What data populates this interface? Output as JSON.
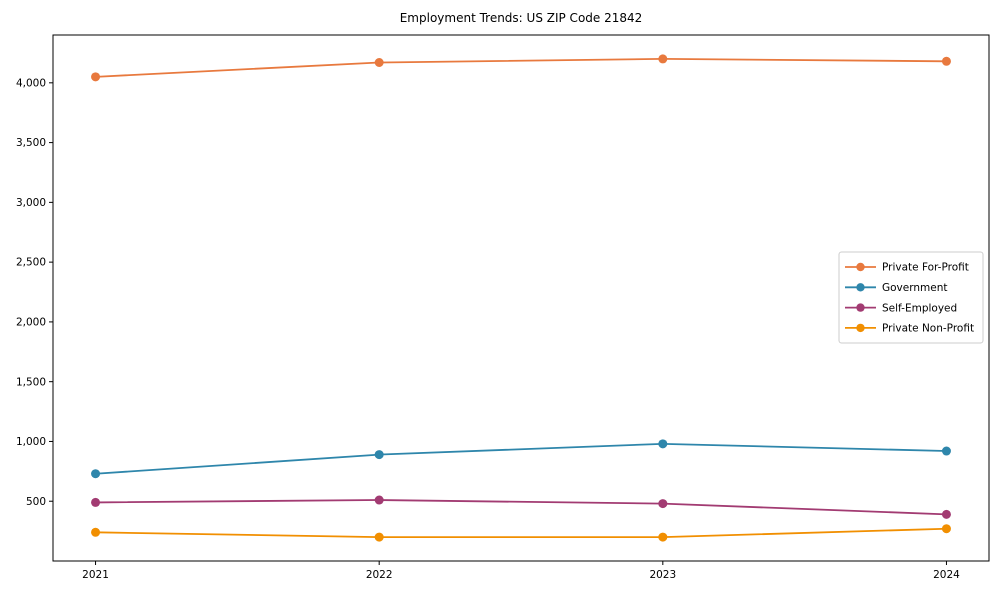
{
  "figure": {
    "title": "Employment Trends: US ZIP Code 21842"
  },
  "chart_data": {
    "type": "line",
    "title": "Employment Trends: US ZIP Code 21842",
    "xlabel": "",
    "ylabel": "",
    "x": [
      2021,
      2022,
      2023,
      2024
    ],
    "x_tick_labels": [
      "2021",
      "2022",
      "2023",
      "2024"
    ],
    "xlim": [
      2020.85,
      2024.15
    ],
    "ylim": [
      0,
      4400
    ],
    "yticks": [
      500,
      1000,
      1500,
      2000,
      2500,
      3000,
      3500,
      4000
    ],
    "ytick_labels": [
      "500",
      "1,000",
      "1,500",
      "2,000",
      "2,500",
      "3,000",
      "3,500",
      "4,000"
    ],
    "grid": false,
    "legend_position": "center right",
    "marker": "circle",
    "background_color": "#ffffff",
    "spine_color": "#000000",
    "series": [
      {
        "name": "Private For-Profit",
        "color": "#E8793E",
        "values": [
          4050,
          4170,
          4200,
          4180
        ]
      },
      {
        "name": "Government",
        "color": "#2E86AB",
        "values": [
          730,
          890,
          980,
          920
        ]
      },
      {
        "name": "Self-Employed",
        "color": "#A23B72",
        "values": [
          490,
          510,
          480,
          390
        ]
      },
      {
        "name": "Private Non-Profit",
        "color": "#F18F01",
        "values": [
          240,
          200,
          200,
          270
        ]
      }
    ]
  }
}
